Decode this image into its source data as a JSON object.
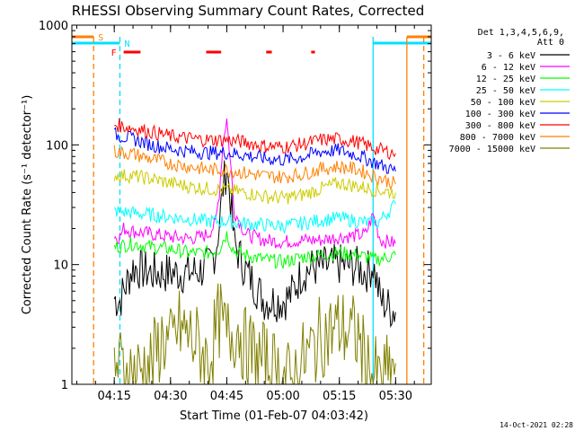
{
  "chart_data": {
    "type": "line",
    "title": "RHESSI Observing Summary Count Rates, Corrected",
    "xlabel": "Start Time (01-Feb-07 04:03:42)",
    "ylabel": "Corrected Count Rate (s⁻¹ detector⁻¹)",
    "ylog": true,
    "ylim": [
      1,
      1000
    ],
    "xlim": [
      "04:03:42",
      "05:39:30"
    ],
    "x_ticks": [
      "04:15",
      "04:30",
      "04:45",
      "05:00",
      "05:15",
      "05:30"
    ],
    "y_ticks": [
      "1",
      "10",
      "100",
      "1000"
    ],
    "legend_position": "top-right",
    "legend_header": [
      "Det 1,3,4,5,6,9,",
      "Att 0"
    ],
    "timestamp": "14-Oct-2021 02:28",
    "flags": {
      "bars": [
        {
          "label": "S",
          "color": "#ff8000",
          "segments": [
            [
              "04:03:42",
              "04:09:30"
            ],
            [
              "05:33:00",
              "05:39:30"
            ]
          ]
        },
        {
          "label": "N",
          "color": "#00e0ff",
          "segments": [
            [
              "04:03:42",
              "04:16:30"
            ],
            [
              "05:24:00",
              "05:39:30"
            ]
          ]
        },
        {
          "label": "F",
          "color": "#ff0000",
          "segments": [
            [
              "04:17:30",
              "04:22:00"
            ],
            [
              "04:39:30",
              "04:43:30"
            ],
            [
              "04:55:30",
              "04:57:00"
            ],
            [
              "05:07:30",
              "05:08:30"
            ]
          ]
        }
      ],
      "vlines": [
        {
          "time": "04:09:30",
          "color": "#ff8000",
          "style": "dashed"
        },
        {
          "time": "04:16:30",
          "color": "#00e0ff",
          "style": "dashed"
        },
        {
          "time": "05:24:00",
          "color": "#00e0ff",
          "style": "solid"
        },
        {
          "time": "05:33:00",
          "color": "#ff8000",
          "style": "solid"
        },
        {
          "time": "05:37:30",
          "color": "#ff8000",
          "style": "dashed"
        }
      ]
    },
    "series": [
      {
        "name": "3 - 6 keV",
        "color": "#000000",
        "x": [
          "04:15",
          "04:16:30",
          "04:17:30",
          "04:20",
          "04:25",
          "04:30",
          "04:35",
          "04:38",
          "04:40",
          "04:42",
          "04:43",
          "04:44",
          "04:45",
          "04:46",
          "04:47",
          "04:50",
          "04:55",
          "05:00",
          "05:02",
          "05:05",
          "05:08",
          "05:10",
          "05:15",
          "05:20",
          "05:22",
          "05:24",
          "05:26",
          "05:30"
        ],
        "y": [
          5.2,
          5.0,
          6.0,
          9.5,
          8.5,
          8.5,
          8.5,
          9.0,
          9.5,
          13,
          22,
          45,
          65,
          35,
          15,
          9.0,
          5.0,
          5.0,
          5.5,
          8.5,
          9.5,
          9.5,
          10,
          9.5,
          8.5,
          10,
          5.0,
          4.0
        ]
      },
      {
        "name": "6 - 12 keV",
        "color": "#ff00ff",
        "x": [
          "04:15",
          "04:16:30",
          "04:17:30",
          "04:20",
          "04:25",
          "04:30",
          "04:35",
          "04:38",
          "04:40",
          "04:42",
          "04:43",
          "04:44",
          "04:45",
          "04:46",
          "04:47",
          "04:50",
          "04:55",
          "05:00",
          "05:05",
          "05:10",
          "05:15",
          "05:20",
          "05:22",
          "05:24",
          "05:26",
          "05:30"
        ],
        "y": [
          17,
          17,
          20,
          19,
          18,
          17,
          16.5,
          17,
          18,
          22,
          40,
          110,
          165,
          70,
          28,
          18,
          16,
          15.5,
          16,
          16,
          17,
          17.5,
          18,
          26,
          16,
          15
        ]
      },
      {
        "name": "12 - 25 keV",
        "color": "#00ff00",
        "x": [
          "04:15",
          "04:20",
          "04:25",
          "04:30",
          "04:35",
          "04:40",
          "04:43",
          "04:44",
          "04:45",
          "04:46",
          "04:47",
          "04:50",
          "04:55",
          "05:00",
          "05:05",
          "05:10",
          "05:15",
          "05:20",
          "05:25",
          "05:30"
        ],
        "y": [
          14,
          15,
          14,
          13.5,
          12.5,
          12.5,
          13.5,
          16,
          18,
          15,
          13,
          12,
          11,
          10.5,
          11.5,
          12,
          12.5,
          12,
          11,
          12
        ]
      },
      {
        "name": "25 - 50 keV",
        "color": "#00ffff",
        "x": [
          "04:15",
          "04:20",
          "04:25",
          "04:30",
          "04:35",
          "04:40",
          "04:45",
          "04:50",
          "04:55",
          "05:00",
          "05:05",
          "05:10",
          "05:15",
          "05:20",
          "05:25",
          "05:30"
        ],
        "y": [
          28,
          27,
          26,
          25,
          24,
          23,
          23,
          22,
          21.5,
          21,
          22,
          23.5,
          24.5,
          23,
          22,
          32
        ]
      },
      {
        "name": "50 - 100 keV",
        "color": "#cccc00",
        "x": [
          "04:15",
          "04:20",
          "04:25",
          "04:30",
          "04:35",
          "04:40",
          "04:45",
          "04:50",
          "04:55",
          "05:00",
          "05:05",
          "05:10",
          "05:15",
          "05:20",
          "05:25",
          "05:30"
        ],
        "y": [
          56,
          55,
          52,
          48,
          45,
          43,
          42,
          40,
          37,
          36,
          38,
          43,
          48,
          45,
          42,
          40
        ]
      },
      {
        "name": "100 - 300 keV",
        "color": "#0000ff",
        "x": [
          "04:15",
          "04:20",
          "04:25",
          "04:30",
          "04:35",
          "04:40",
          "04:45",
          "04:50",
          "04:55",
          "05:00",
          "05:05",
          "05:10",
          "05:15",
          "05:20",
          "05:25",
          "05:30"
        ],
        "y": [
          122,
          112,
          100,
          93,
          88,
          86,
          86,
          82,
          77,
          75,
          79,
          88,
          90,
          82,
          70,
          60
        ]
      },
      {
        "name": "300 - 800 keV",
        "color": "#ff0000",
        "x": [
          "04:15",
          "04:20",
          "04:25",
          "04:30",
          "04:35",
          "04:40",
          "04:45",
          "04:50",
          "04:55",
          "05:00",
          "05:05",
          "05:10",
          "05:15",
          "05:20",
          "05:25",
          "05:30"
        ],
        "y": [
          148,
          138,
          128,
          118,
          113,
          110,
          110,
          105,
          98,
          96,
          101,
          110,
          112,
          105,
          92,
          85
        ]
      },
      {
        "name": "800 - 7000 keV",
        "color": "#ff8000",
        "x": [
          "04:15",
          "04:20",
          "04:25",
          "04:30",
          "04:35",
          "04:40",
          "04:45",
          "04:50",
          "04:55",
          "05:00",
          "05:05",
          "05:10",
          "05:15",
          "05:20",
          "05:25",
          "05:30"
        ],
        "y": [
          88,
          84,
          76,
          70,
          66,
          62,
          62,
          58,
          55,
          54,
          57,
          63,
          66,
          62,
          54,
          47
        ]
      },
      {
        "name": "7000 - 15000 keV",
        "color": "#808000",
        "x": [
          "04:15",
          "04:20",
          "04:25",
          "04:28",
          "04:30",
          "04:32",
          "04:35",
          "04:38",
          "04:40",
          "04:43",
          "04:45",
          "04:48",
          "04:50",
          "04:55",
          "05:00",
          "05:02",
          "05:05",
          "05:08",
          "05:10",
          "05:15",
          "05:20",
          "05:22",
          "05:24",
          "05:26",
          "05:30"
        ],
        "y": [
          1.5,
          1.2,
          1.5,
          2.5,
          2.0,
          3.0,
          2.5,
          2.0,
          1.5,
          3.5,
          2.5,
          3.0,
          2.0,
          1.5,
          1.2,
          1.0,
          1.5,
          2.0,
          2.5,
          3.0,
          2.5,
          1.5,
          1.2,
          1.0,
          1.5
        ]
      }
    ]
  }
}
